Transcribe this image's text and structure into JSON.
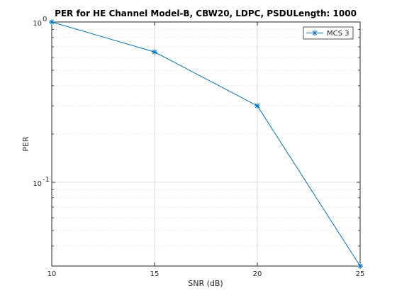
{
  "chart_data": {
    "type": "line",
    "title": "PER for HE Channel Model-B, CBW20, LDPC, PSDULength: 1000",
    "xlabel": "SNR (dB)",
    "ylabel": "PER",
    "xlim": [
      10,
      25
    ],
    "ylim": [
      0.03,
      1
    ],
    "yscale": "log",
    "grid": true,
    "x_ticks": [
      10,
      15,
      20,
      25
    ],
    "x_tick_labels": [
      "10",
      "15",
      "20",
      "25"
    ],
    "y_ticks": [
      0.1,
      1
    ],
    "y_tick_base": "10",
    "y_tick_exponents": [
      "-1",
      "0"
    ],
    "legend_position": "top-right",
    "series": [
      {
        "name": "MCS 3",
        "color": "#0072bd",
        "marker": "asterisk",
        "x": [
          10,
          15,
          20,
          25
        ],
        "values": [
          1.0,
          0.65,
          0.3,
          0.03
        ]
      }
    ]
  }
}
